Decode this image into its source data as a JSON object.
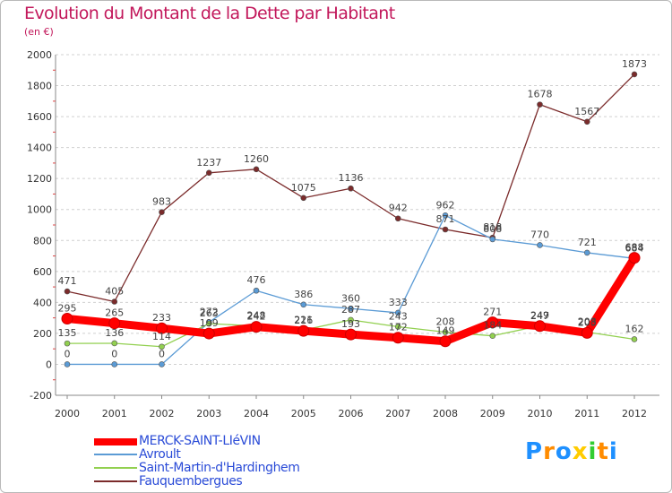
{
  "title": "Evolution du Montant de la Dette par Habitant",
  "subtitle": "(en €)",
  "logo": {
    "text": "Proxiti",
    "letters": [
      "P",
      "r",
      "o",
      "x",
      "i",
      "t",
      "i"
    ],
    "colors": [
      "#1e90ff",
      "#ff8c00",
      "#1e90ff",
      "#ffcc00",
      "#32cd32",
      "#ff8c00",
      "#1e90ff"
    ]
  },
  "chart_data": {
    "type": "line",
    "title": "Evolution du Montant de la Dette par Habitant",
    "ylabel": "(en €)",
    "xlabel": "",
    "x": [
      "2000",
      "2001",
      "2002",
      "2003",
      "2004",
      "2005",
      "2006",
      "2007",
      "2008",
      "2009",
      "2010",
      "2011",
      "2012"
    ],
    "ylim": [
      -200,
      2000
    ],
    "yticks": [
      "-200",
      "0",
      "200",
      "400",
      "600",
      "800",
      "1000",
      "1200",
      "1400",
      "1600",
      "1800",
      "2000"
    ],
    "grid": "horizontal dashed",
    "legend": "bottom-left",
    "series": [
      {
        "name": "MERCK-SAINT-LIéVIN",
        "color": "#ff0000",
        "values": [
          295,
          265,
          233,
          199,
          242,
          216,
          193,
          172,
          149,
          271,
          247,
          203,
          688
        ],
        "labels": [
          "295",
          "265",
          "233",
          "199",
          "242",
          "216",
          "193",
          "172",
          "149",
          "271",
          "247",
          "203",
          "688"
        ]
      },
      {
        "name": "Avroult",
        "color": "#5b9bd5",
        "values": [
          0,
          0,
          0,
          272,
          476,
          386,
          360,
          333,
          962,
          808,
          770,
          721,
          684
        ],
        "labels": [
          "0",
          "0",
          "0",
          "272",
          "476",
          "386",
          "360",
          "333",
          "962",
          "808",
          "770",
          "721",
          "684"
        ]
      },
      {
        "name": "Saint-Martin-d'Hardinghem",
        "color": "#92d050",
        "values": [
          135,
          136,
          114,
          263,
          248,
          221,
          287,
          243,
          208,
          184,
          249,
          208,
          162
        ],
        "labels": [
          "135",
          "136",
          "114",
          "263",
          "248",
          "221",
          "287",
          "243",
          "208",
          "184",
          "249",
          "208",
          "162"
        ]
      },
      {
        "name": "Fauquembergues",
        "color": "#7b2b2b",
        "values": [
          471,
          405,
          983,
          1237,
          1260,
          1075,
          1136,
          942,
          871,
          818,
          1678,
          1567,
          1873
        ],
        "labels": [
          "471",
          "405",
          "983",
          "1237",
          "1260",
          "1075",
          "1136",
          "942",
          "871",
          "818",
          "1678",
          "1567",
          "1873"
        ]
      }
    ]
  }
}
